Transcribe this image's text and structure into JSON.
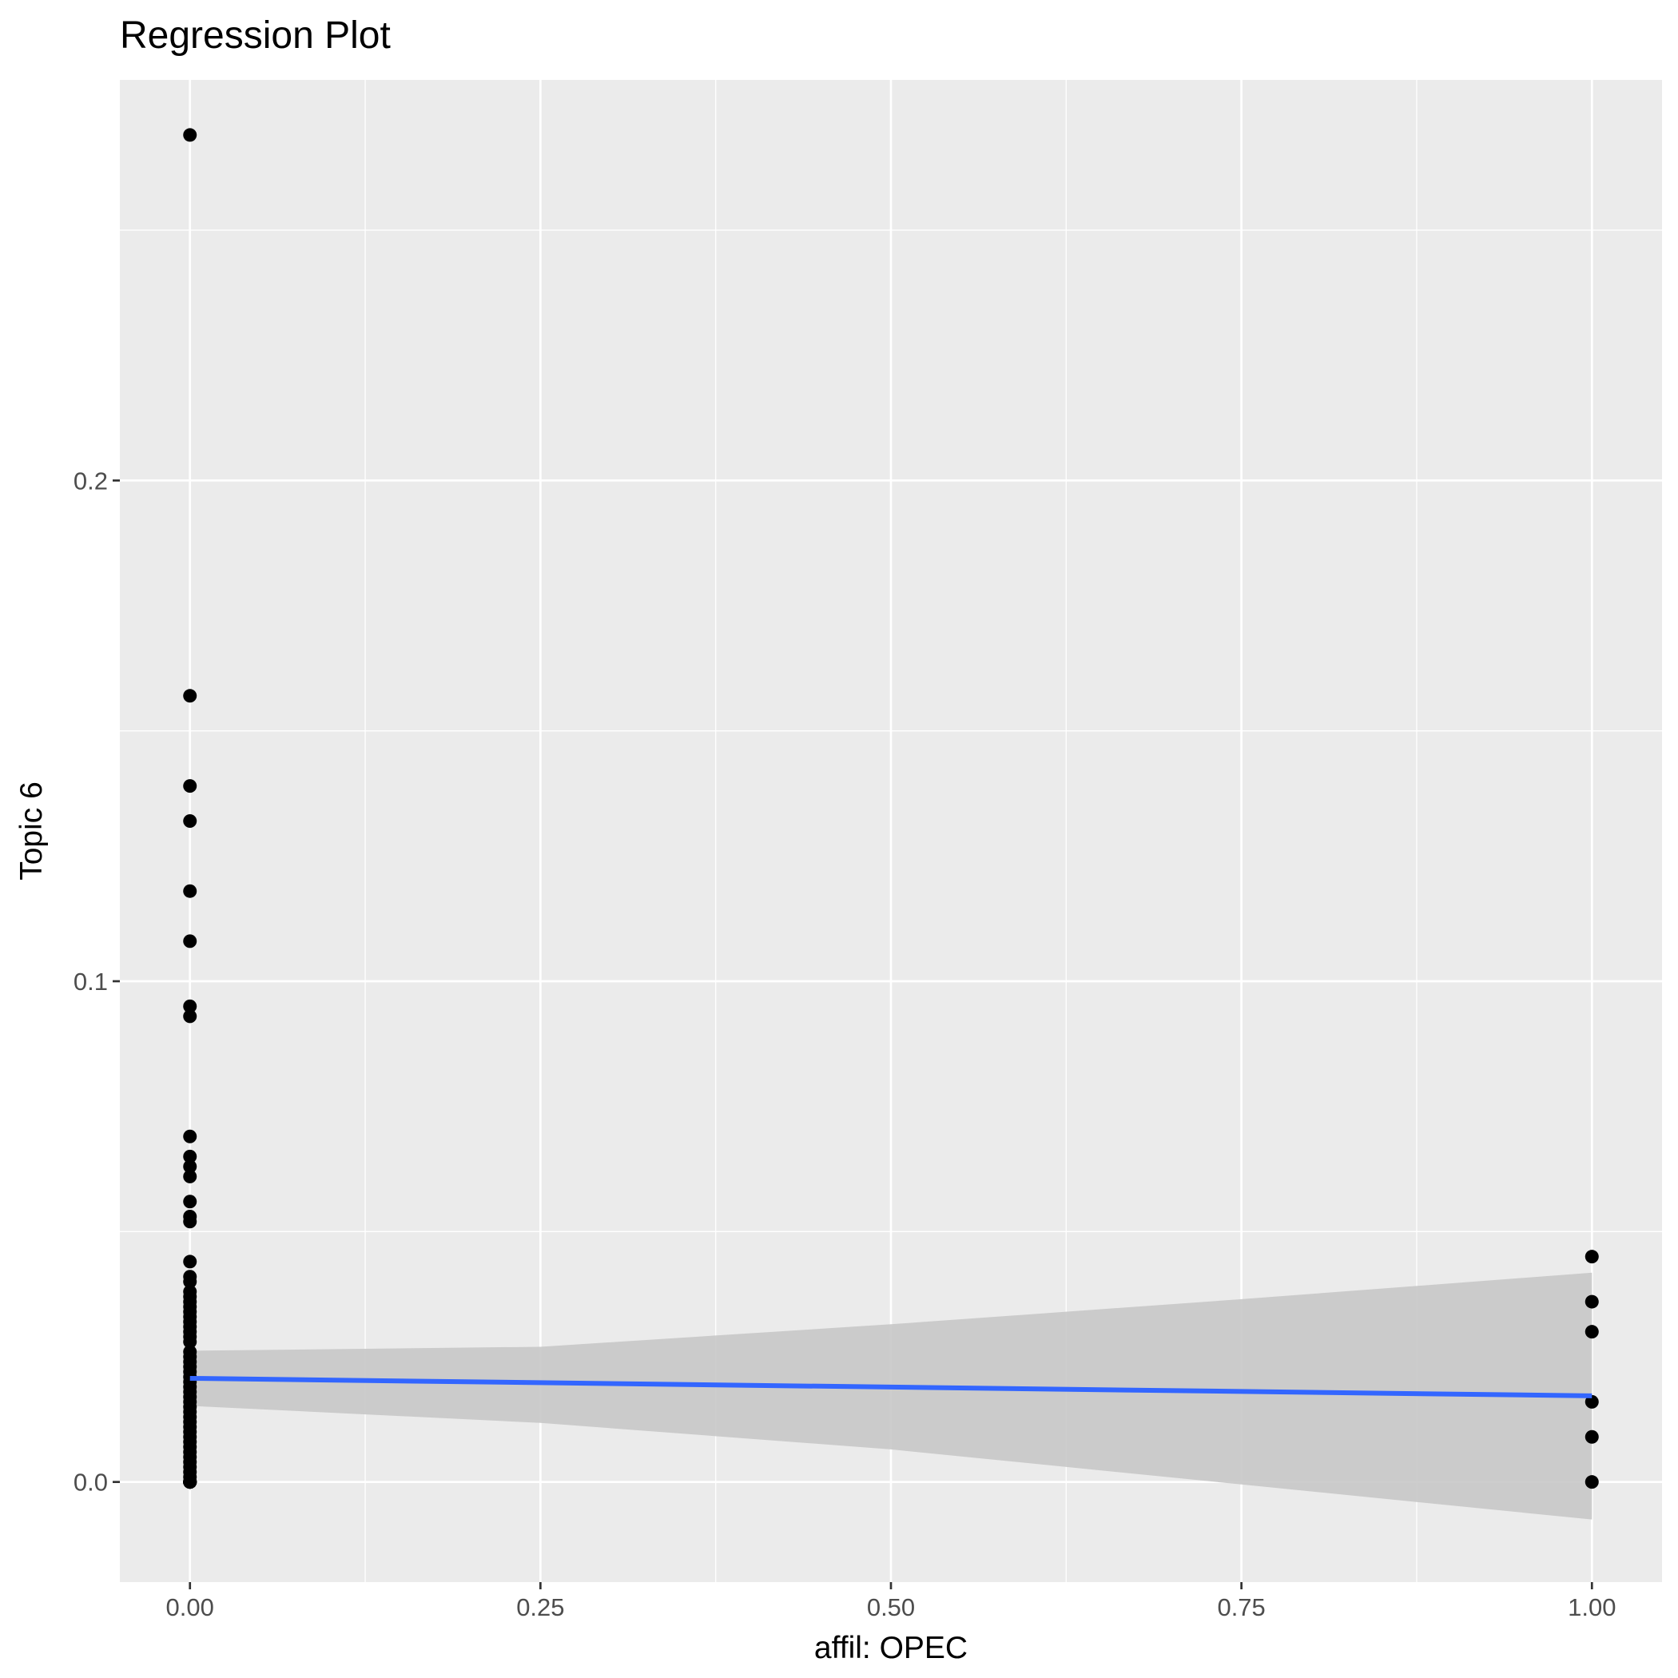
{
  "chart_data": {
    "type": "scatter",
    "title": "Regression Plot",
    "xlabel": "affil: OPEC",
    "ylabel": "Topic 6",
    "xlim": [
      -0.05,
      1.05
    ],
    "ylim": [
      -0.02,
      0.28
    ],
    "x_ticks": [
      {
        "value": 0.0,
        "label": "0.00"
      },
      {
        "value": 0.25,
        "label": "0.25"
      },
      {
        "value": 0.5,
        "label": "0.50"
      },
      {
        "value": 0.75,
        "label": "0.75"
      },
      {
        "value": 1.0,
        "label": "1.00"
      }
    ],
    "y_ticks": [
      {
        "value": 0.0,
        "label": "0.0"
      },
      {
        "value": 0.1,
        "label": "0.1"
      },
      {
        "value": 0.2,
        "label": "0.2"
      }
    ],
    "grid": true,
    "colors": {
      "panel": "#ebebeb",
      "grid": "#ffffff",
      "points": "#000000",
      "line": "#3366ff",
      "ribbon": "#c8c8c8"
    },
    "series": [
      {
        "kind": "points",
        "x": [
          0,
          0,
          0,
          0,
          0,
          0,
          0,
          0,
          0,
          0,
          0,
          0,
          0,
          0,
          0,
          0,
          0,
          0,
          0,
          0,
          0,
          0,
          0,
          0,
          0,
          0,
          0,
          0,
          0,
          0,
          0,
          0,
          0,
          0,
          0,
          0,
          0,
          0,
          0,
          0,
          0,
          0,
          0,
          0,
          0,
          0,
          0,
          0,
          0,
          0,
          0,
          0,
          0,
          0,
          0,
          0,
          0,
          0,
          0,
          0,
          0,
          0,
          0,
          0,
          0,
          0,
          1,
          1,
          1,
          1,
          1,
          1
        ],
        "y": [
          0.269,
          0.157,
          0.139,
          0.132,
          0.118,
          0.108,
          0.095,
          0.093,
          0.069,
          0.065,
          0.063,
          0.061,
          0.056,
          0.053,
          0.052,
          0.044,
          0.041,
          0.04,
          0.038,
          0.037,
          0.036,
          0.035,
          0.034,
          0.033,
          0.032,
          0.031,
          0.03,
          0.029,
          0.028,
          0.026,
          0.025,
          0.024,
          0.023,
          0.022,
          0.021,
          0.02,
          0.019,
          0.018,
          0.017,
          0.016,
          0.015,
          0.014,
          0.013,
          0.012,
          0.011,
          0.01,
          0.009,
          0.008,
          0.007,
          0.006,
          0.005,
          0.004,
          0.003,
          0.002,
          0.001,
          0.0,
          0.0,
          0.0,
          0.0,
          0.0,
          0.0,
          0.0,
          0.0,
          0.0,
          0.0,
          0.0,
          0.045,
          0.036,
          0.03,
          0.016,
          0.009,
          0.0
        ]
      },
      {
        "kind": "fit",
        "x": [
          0,
          1
        ],
        "y": [
          0.0207,
          0.0172
        ]
      },
      {
        "kind": "ribbon",
        "x": [
          0,
          0.25,
          0.5,
          0.75,
          1.0
        ],
        "ymin": [
          0.0152,
          0.0118,
          0.0065,
          -0.0005,
          -0.0075
        ],
        "ymax": [
          0.0262,
          0.027,
          0.0315,
          0.0365,
          0.0418
        ]
      }
    ]
  }
}
